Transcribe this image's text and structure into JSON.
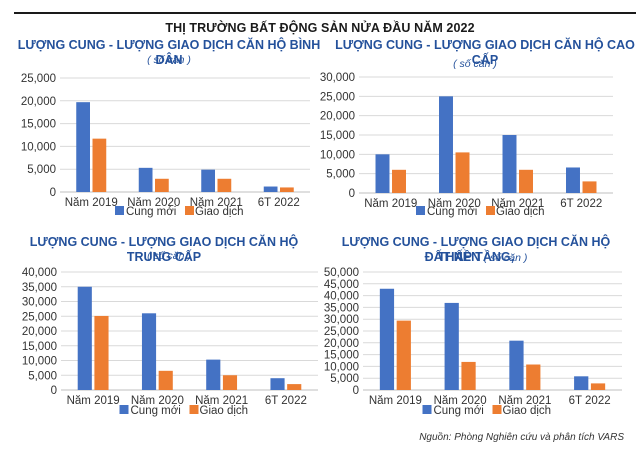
{
  "page": {
    "main_title": "THỊ TRƯỜNG BẤT ĐỘNG SẢN NỬA ĐẦU NĂM 2022",
    "source": "Nguồn: Phòng Nghiên cứu và phân tích VARS",
    "colors": {
      "cung_moi": "#4472C4",
      "giao_dich": "#ED7D31",
      "title": "#24519b"
    }
  },
  "chart_data": [
    {
      "type": "bar",
      "title": "LƯỢNG CUNG - LƯỢNG GIAO DỊCH CĂN HỘ BÌNH DÂN",
      "subtitle": "( số căn )",
      "categories": [
        "Năm 2019",
        "Năm 2020",
        "Năm 2021",
        "6T 2022"
      ],
      "series": [
        {
          "name": "Cung mới",
          "values": [
            19700,
            5300,
            4900,
            1200
          ]
        },
        {
          "name": "Giao dịch",
          "values": [
            11700,
            2900,
            2900,
            1000
          ]
        }
      ],
      "yticks": [
        "0",
        "5,000",
        "10,000",
        "15,000",
        "20,000",
        "25,000"
      ],
      "ylim": [
        0,
        25000
      ],
      "xlabel": "",
      "ylabel": "",
      "grid": true,
      "legend": "bottom"
    },
    {
      "type": "bar",
      "title": "LƯỢNG CUNG - LƯỢNG GIAO DỊCH CĂN HỘ CAO CẤP",
      "subtitle": "( số căn )",
      "categories": [
        "Năm 2019",
        "Năm 2020",
        "Năm 2021",
        "6T 2022"
      ],
      "series": [
        {
          "name": "Cung mới",
          "values": [
            10000,
            25000,
            15000,
            6600
          ]
        },
        {
          "name": "Giao dịch",
          "values": [
            6000,
            10500,
            6000,
            3000
          ]
        }
      ],
      "yticks": [
        "0",
        "5,000",
        "10,000",
        "15,000",
        "20,000",
        "25,000",
        "30,000"
      ],
      "ylim": [
        0,
        30000
      ],
      "xlabel": "",
      "ylabel": "",
      "grid": true,
      "legend": "bottom"
    },
    {
      "type": "bar",
      "title": "LƯỢNG CUNG - LƯỢNG GIAO DỊCH CĂN HỘ TRUNG CẤP",
      "subtitle": "( số căn )",
      "categories": [
        "Năm 2019",
        "Năm 2020",
        "Năm 2021",
        "6T 2022"
      ],
      "series": [
        {
          "name": "Cung mới",
          "values": [
            35000,
            26000,
            10300,
            4000
          ]
        },
        {
          "name": "Giao dịch",
          "values": [
            25100,
            6500,
            5000,
            2000
          ]
        }
      ],
      "yticks": [
        "0",
        "5,000",
        "10,000",
        "15,000",
        "20,000",
        "25,000",
        "30,000",
        "35,000",
        "40,000"
      ],
      "ylim": [
        0,
        40000
      ],
      "xlabel": "",
      "ylabel": "",
      "grid": true,
      "legend": "bottom"
    },
    {
      "type": "bar",
      "title": "LƯỢNG CUNG - LƯỢNG GIAO DỊCH CĂN HỘ THẤP TẦNG,",
      "title_line2": "ĐẤT NỀN",
      "subtitle": "( số căn )",
      "categories": [
        "Năm 2019",
        "Năm 2020",
        "Năm 2021",
        "6T 2022"
      ],
      "series": [
        {
          "name": "Cung mới",
          "values": [
            42900,
            36900,
            20900,
            5800
          ]
        },
        {
          "name": "Giao dịch",
          "values": [
            29400,
            11900,
            10800,
            2800
          ]
        }
      ],
      "yticks": [
        "0",
        "5,000",
        "10,000",
        "15,000",
        "20,000",
        "25,000",
        "30,000",
        "35,000",
        "40,000",
        "45,000",
        "50,000"
      ],
      "ylim": [
        0,
        50000
      ],
      "xlabel": "",
      "ylabel": "",
      "grid": true,
      "legend": "bottom"
    }
  ]
}
